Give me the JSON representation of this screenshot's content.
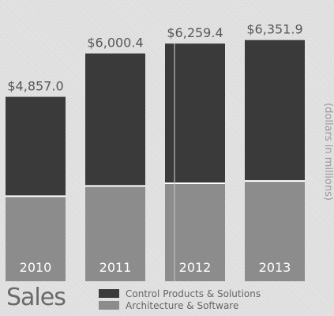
{
  "chart_data": {
    "type": "bar",
    "stacked": true,
    "title": "Sales",
    "unit_label": "(dollars in millions)",
    "categories": [
      "2010",
      "2011",
      "2012",
      "2013"
    ],
    "totals": [
      "$4,857.0",
      "$6,000.4",
      "$6,259.4",
      "$6,351.9"
    ],
    "series": [
      {
        "name": "Architecture & Software",
        "color": "#8c8c8c",
        "values": [
          2240,
          2510,
          2580,
          2640
        ]
      },
      {
        "name": "Control Products & Solutions",
        "color": "#3a3a3a",
        "values": [
          2617,
          3490.4,
          3679.4,
          3711.9
        ]
      }
    ],
    "ylim": [
      0,
      6700
    ],
    "legend_position": "bottom",
    "grid": false
  }
}
